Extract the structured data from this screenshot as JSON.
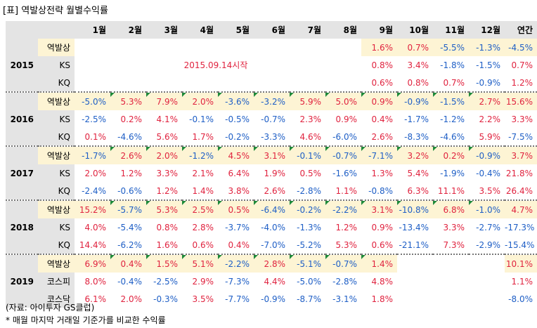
{
  "title": "[표] 역발상전략 월별수익률",
  "columns": [
    "1월",
    "2월",
    "3월",
    "4월",
    "5월",
    "6월",
    "7월",
    "8월",
    "9월",
    "10월",
    "11월",
    "12월",
    "연간"
  ],
  "note_2015": "2015.09.14시작",
  "source": "(자료: 아이투자 GS클럽)",
  "footnote": "* 매월 마지막 거래일 기준가를 비교한 수익률",
  "colors": {
    "positive": "#e0233f",
    "negative": "#1f5fc6",
    "highlight": "#fdf4d4",
    "header": "#e4e4e4"
  },
  "years": [
    {
      "year": "2015",
      "rows": [
        {
          "label": "역발상",
          "values": [
            "",
            "",
            "",
            "",
            "",
            "",
            "",
            "",
            "1.6%",
            "0.7%",
            "-5.5%",
            "-1.3%",
            "-4.5%"
          ]
        },
        {
          "label": "KS",
          "values": [
            "",
            "",
            "",
            "",
            "",
            "",
            "",
            "",
            "0.8%",
            "3.4%",
            "-1.8%",
            "-1.5%",
            "0.7%"
          ]
        },
        {
          "label": "KQ",
          "values": [
            "",
            "",
            "",
            "",
            "",
            "",
            "",
            "",
            "0.6%",
            "0.8%",
            "0.7%",
            "-0.9%",
            "1.2%"
          ]
        }
      ]
    },
    {
      "year": "2016",
      "rows": [
        {
          "label": "역발상",
          "values": [
            "-5.0%",
            "5.3%",
            "7.9%",
            "2.0%",
            "-3.6%",
            "-3.2%",
            "5.9%",
            "5.0%",
            "0.9%",
            "-0.9%",
            "-1.5%",
            "2.7%",
            "15.6%"
          ]
        },
        {
          "label": "KS",
          "values": [
            "-2.5%",
            "0.2%",
            "4.1%",
            "-0.1%",
            "-0.5%",
            "-0.7%",
            "2.3%",
            "0.9%",
            "0.4%",
            "-1.7%",
            "-1.2%",
            "2.2%",
            "3.3%"
          ]
        },
        {
          "label": "KQ",
          "values": [
            "0.1%",
            "-4.6%",
            "5.6%",
            "1.7%",
            "-0.2%",
            "-3.3%",
            "4.6%",
            "-6.0%",
            "2.6%",
            "-8.3%",
            "-4.6%",
            "5.9%",
            "-7.5%"
          ]
        }
      ]
    },
    {
      "year": "2017",
      "rows": [
        {
          "label": "역발상",
          "values": [
            "-1.7%",
            "2.6%",
            "2.0%",
            "-1.2%",
            "4.5%",
            "3.1%",
            "-0.1%",
            "-0.7%",
            "-7.1%",
            "3.2%",
            "0.2%",
            "-0.9%",
            "3.7%"
          ]
        },
        {
          "label": "KS",
          "values": [
            "2.0%",
            "1.2%",
            "3.3%",
            "2.1%",
            "6.4%",
            "1.9%",
            "0.5%",
            "-1.6%",
            "1.3%",
            "5.4%",
            "-1.9%",
            "-0.4%",
            "21.8%"
          ]
        },
        {
          "label": "KQ",
          "values": [
            "-2.4%",
            "-0.6%",
            "1.2%",
            "1.4%",
            "3.8%",
            "2.6%",
            "-2.8%",
            "1.1%",
            "-0.8%",
            "6.3%",
            "11.1%",
            "3.5%",
            "26.4%"
          ]
        }
      ]
    },
    {
      "year": "2018",
      "rows": [
        {
          "label": "역발상",
          "values": [
            "15.2%",
            "-5.7%",
            "5.3%",
            "2.5%",
            "0.5%",
            "-6.4%",
            "-0.2%",
            "-2.2%",
            "3.1%",
            "-10.8%",
            "6.8%",
            "-1.0%",
            "4.7%"
          ]
        },
        {
          "label": "KS",
          "values": [
            "4.0%",
            "-5.4%",
            "0.8%",
            "2.8%",
            "-3.7%",
            "-4.0%",
            "-1.3%",
            "1.2%",
            "0.9%",
            "-13.4%",
            "3.3%",
            "-2.7%",
            "-17.3%"
          ]
        },
        {
          "label": "KQ",
          "values": [
            "14.4%",
            "-6.2%",
            "1.6%",
            "0.6%",
            "0.4%",
            "-7.0%",
            "-5.2%",
            "5.3%",
            "0.6%",
            "-21.1%",
            "7.3%",
            "-2.9%",
            "-15.4%"
          ]
        }
      ]
    },
    {
      "year": "2019",
      "rows": [
        {
          "label": "역발상",
          "values": [
            "6.9%",
            "0.4%",
            "1.5%",
            "5.1%",
            "-2.2%",
            "2.8%",
            "-5.1%",
            "-0.7%",
            "1.4%",
            "",
            "",
            "",
            "10.1%"
          ]
        },
        {
          "label": "코스피",
          "values": [
            "8.0%",
            "-0.4%",
            "-2.5%",
            "2.9%",
            "-7.3%",
            "4.4%",
            "-5.0%",
            "-2.8%",
            "4.8%",
            "",
            "",
            "",
            "1.1%"
          ]
        },
        {
          "label": "코스닥",
          "values": [
            "6.1%",
            "2.0%",
            "-0.3%",
            "3.5%",
            "-7.7%",
            "-0.9%",
            "-8.7%",
            "-3.1%",
            "1.8%",
            "",
            "",
            "",
            "-8.0%"
          ]
        }
      ]
    }
  ]
}
